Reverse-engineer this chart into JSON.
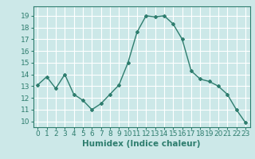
{
  "x": [
    0,
    1,
    2,
    3,
    4,
    5,
    6,
    7,
    8,
    9,
    10,
    11,
    12,
    13,
    14,
    15,
    16,
    17,
    18,
    19,
    20,
    21,
    22,
    23
  ],
  "y": [
    13.1,
    13.8,
    12.8,
    14.0,
    12.3,
    11.8,
    11.0,
    11.5,
    12.3,
    13.1,
    15.0,
    17.6,
    19.0,
    18.9,
    19.0,
    18.3,
    17.0,
    14.3,
    13.6,
    13.4,
    13.0,
    12.3,
    11.0,
    9.9
  ],
  "line_color": "#2e7d6e",
  "marker": "D",
  "marker_size": 2.0,
  "bg_color": "#cce8e8",
  "grid_color": "#ffffff",
  "xlabel": "Humidex (Indice chaleur)",
  "ylabel_ticks": [
    10,
    11,
    12,
    13,
    14,
    15,
    16,
    17,
    18,
    19
  ],
  "xtick_labels": [
    "0",
    "1",
    "2",
    "3",
    "4",
    "5",
    "6",
    "7",
    "8",
    "9",
    "10",
    "11",
    "12",
    "13",
    "14",
    "15",
    "16",
    "17",
    "18",
    "19",
    "20",
    "21",
    "22",
    "23"
  ],
  "ylim": [
    9.5,
    19.8
  ],
  "xlim": [
    -0.5,
    23.5
  ],
  "font_color": "#2e7d6e",
  "tick_fontsize": 6.5,
  "label_fontsize": 7.5,
  "linewidth": 1.0
}
